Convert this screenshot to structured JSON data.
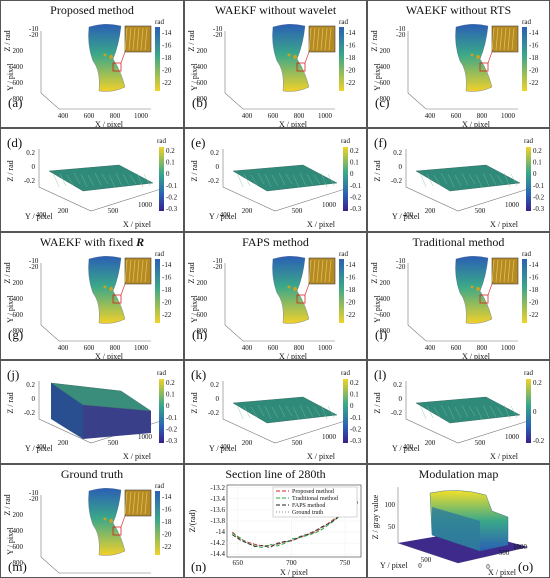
{
  "panels": {
    "a": {
      "title": "Proposed method",
      "letter": "(a)"
    },
    "b": {
      "title": "WAEKF without wavelet",
      "letter": "(b)"
    },
    "c": {
      "title": "WAEKF without RTS",
      "letter": "(c)"
    },
    "d": {
      "letter": "(d)"
    },
    "e": {
      "letter": "(e)"
    },
    "f": {
      "letter": "(f)"
    },
    "g": {
      "title": "WAEKF with fixed ",
      "title_em": "R",
      "letter": "(g)"
    },
    "h": {
      "title": "FAPS method",
      "letter": "(h)"
    },
    "i": {
      "title": "Traditional method",
      "letter": "(i)"
    },
    "j": {
      "letter": "(j)"
    },
    "k": {
      "letter": "(k)"
    },
    "l": {
      "letter": "(l)"
    },
    "m": {
      "title": "Ground truth",
      "letter": "(m)"
    },
    "n": {
      "title": "Section line of  280th",
      "letter": "(n)"
    },
    "o": {
      "title": "Modulation map",
      "letter": "(o)"
    }
  },
  "surface3d": {
    "unit": "rad",
    "x_label": "X / pixel",
    "y_label": "Y / pixel",
    "z_label": "Z / rad",
    "x_ticks": [
      "400",
      "600",
      "800",
      "1000"
    ],
    "y_ticks": [
      "800",
      "600",
      "400",
      "200"
    ],
    "z_ticks": [
      "-20",
      "-10"
    ],
    "colorbar_ticks": [
      "-14",
      "-16",
      "-18",
      "-20",
      "-22"
    ]
  },
  "error3d": {
    "unit": "rad",
    "x_label": "X / pixel",
    "y_label": "Y / pixel",
    "z_label": "Z / rad",
    "x_ticks": [
      "500",
      "1000"
    ],
    "y_ticks": [
      "200",
      "400"
    ],
    "z_ticks": [
      "0.2",
      "0",
      "-0.2"
    ],
    "colorbar_ticks": [
      "0.2",
      "0.1",
      "0",
      "-0.1",
      "-0.2",
      "-0.3"
    ],
    "colorbar_ticks_l": [
      "0.2",
      "0",
      "-0.2"
    ]
  },
  "modulation": {
    "z_label": "Z / gray value",
    "x_label": "X / pixel",
    "y_label": "Y / pixel",
    "z_ticks": [
      "50",
      "100"
    ],
    "x_ticks": [
      "0",
      "500",
      "1000"
    ],
    "y_ticks": [
      "500",
      "0"
    ]
  },
  "colors": {
    "surface_top": "#2b5fb5",
    "surface_mid": "#3aa889",
    "surface_bottom": "#f2d12a",
    "highlight_box": "#d62020",
    "error_surface": "#2f8a7a"
  },
  "chart_data": {
    "type": "line",
    "title": "Section line of  280th",
    "xlabel": "X / pixel",
    "ylabel": "Z/(rad)",
    "xlim": [
      640,
      765
    ],
    "ylim": [
      -14.45,
      -13.15
    ],
    "x_ticks": [
      650,
      700,
      750
    ],
    "y_ticks": [
      -13.2,
      -13.4,
      -13.6,
      -13.8,
      -14,
      -14.2,
      -14.4
    ],
    "legend_position": "top-right",
    "x": [
      645,
      652,
      659,
      666,
      673,
      680,
      687,
      694,
      701,
      708,
      715,
      722,
      729,
      736,
      743,
      750,
      757,
      762
    ],
    "series": [
      {
        "name": "Proposed method",
        "color": "#d62020",
        "dash": "4 2",
        "values": [
          -14.0,
          -14.12,
          -14.18,
          -14.22,
          -14.25,
          -14.24,
          -14.22,
          -14.18,
          -14.15,
          -14.1,
          -14.05,
          -14.0,
          -13.92,
          -13.82,
          -13.72,
          -13.62,
          -13.52,
          -13.45
        ]
      },
      {
        "name": "Traditional method",
        "color": "#1fae3c",
        "dash": "4 2",
        "values": [
          -14.02,
          -14.1,
          -14.2,
          -14.25,
          -14.28,
          -14.22,
          -14.25,
          -14.2,
          -14.12,
          -14.1,
          -14.06,
          -14.02,
          -13.95,
          -13.85,
          -13.75,
          -13.6,
          -13.5,
          -13.42
        ]
      },
      {
        "name": "FAPS method",
        "color": "#222222",
        "dash": "4 2",
        "values": [
          -14.05,
          -14.14,
          -14.2,
          -14.26,
          -14.24,
          -14.28,
          -14.2,
          -14.17,
          -14.16,
          -14.08,
          -14.04,
          -13.98,
          -13.9,
          -13.84,
          -13.74,
          -13.63,
          -13.53,
          -13.47
        ]
      },
      {
        "name": "Ground truth",
        "color": "#8a8a8a",
        "dash": "1 2",
        "values": [
          -14.03,
          -14.13,
          -14.19,
          -14.23,
          -14.25,
          -14.24,
          -14.22,
          -14.18,
          -14.14,
          -14.09,
          -14.04,
          -13.99,
          -13.92,
          -13.83,
          -13.73,
          -13.62,
          -13.52,
          -13.45
        ]
      }
    ]
  }
}
